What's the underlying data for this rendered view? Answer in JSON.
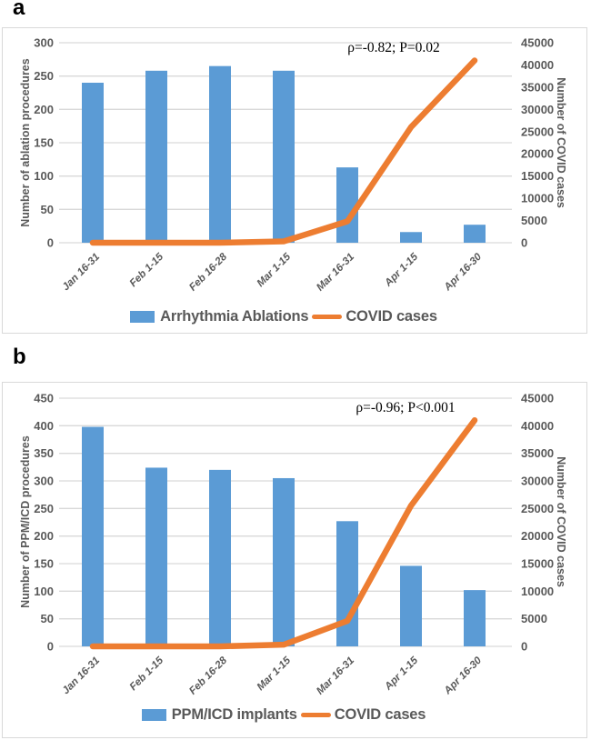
{
  "colors": {
    "bar_fill": "#5B9BD5",
    "line_stroke": "#ED7D31",
    "gridline": "#D9D9D9",
    "tick_label": "#595959",
    "axis_title": "#595959",
    "legend_label": "#595959",
    "annotation_text": "#000000",
    "panel_border": "#D9D9D9"
  },
  "chart_data": [
    {
      "type": "bar+line",
      "panel_label": "a",
      "grid": true,
      "legend_position": "bottom",
      "categories": [
        "Jan 16-31",
        "Feb 1-15",
        "Feb 16-28",
        "Mar 1-15",
        "Mar 16-31",
        "Apr 1-15",
        "Apr 16-30"
      ],
      "series": [
        {
          "name": "Arrhythmia Ablations",
          "type": "bar",
          "axis": "left",
          "values": [
            240,
            258,
            265,
            258,
            113,
            16,
            27
          ]
        },
        {
          "name": "COVID cases",
          "type": "line",
          "axis": "right",
          "values": [
            0,
            0,
            0,
            300,
            4800,
            26000,
            41000
          ]
        }
      ],
      "left_axis": {
        "title": "Number of ablation procedures",
        "min": 0,
        "max": 300,
        "step": 50
      },
      "right_axis": {
        "title": "Number of COVID cases",
        "min": 0,
        "max": 45000,
        "step": 5000
      },
      "annotation": "ρ=-0.82; P=0.02"
    },
    {
      "type": "bar+line",
      "panel_label": "b",
      "grid": true,
      "legend_position": "bottom",
      "categories": [
        "Jan 16-31",
        "Feb 1-15",
        "Feb 16-28",
        "Mar 1-15",
        "Mar 16-31",
        "Apr 1-15",
        "Apr 16-30"
      ],
      "series": [
        {
          "name": "PPM/ICD implants",
          "type": "bar",
          "axis": "left",
          "values": [
            398,
            324,
            320,
            305,
            227,
            146,
            102
          ]
        },
        {
          "name": "COVID cases",
          "type": "line",
          "axis": "right",
          "values": [
            0,
            0,
            0,
            300,
            4600,
            25500,
            41000
          ]
        }
      ],
      "left_axis": {
        "title": "Number of PPM/ICD procedures",
        "min": 0,
        "max": 450,
        "step": 50
      },
      "right_axis": {
        "title": "Number of COVID cases",
        "min": 0,
        "max": 45000,
        "step": 5000
      },
      "annotation": "ρ=-0.96; P<0.001"
    }
  ]
}
